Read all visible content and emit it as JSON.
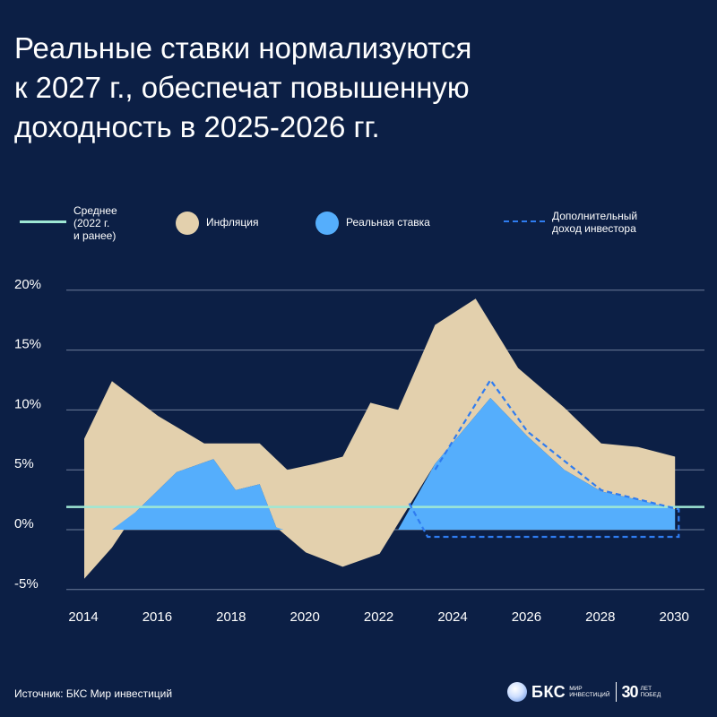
{
  "title_lines": [
    "Реальные ставки нормализуются",
    "к 2027 г., обеспечат повышенную",
    "доходность в 2025-2026 гг."
  ],
  "legend": {
    "average": "Среднее\n(2022 г.\nи ранее)",
    "inflation": "Инфляция",
    "real_rate": "Реальная ставка",
    "extra_income": "Дополнительный\nдоход инвестора"
  },
  "colors": {
    "background": "#0c1f45",
    "inflation": "#e3d0ad",
    "real_rate": "#55aefc",
    "average": "#9ee7d4",
    "extra_income": "#2f7cf0",
    "grid": "#6d7c99"
  },
  "chart_data": {
    "type": "area",
    "title": "",
    "xlabel": "",
    "ylabel": "",
    "y_unit": "%",
    "ylim": [
      -5,
      20
    ],
    "y_ticks": [
      20,
      15,
      10,
      5,
      0,
      -5
    ],
    "y_tick_labels": [
      "20%",
      "15%",
      "10%",
      "5%",
      "0%",
      "-5%"
    ],
    "xlim": [
      2014,
      2030.3
    ],
    "x_ticks": [
      2014,
      2016,
      2018,
      2020,
      2022,
      2024,
      2026,
      2028,
      2030
    ],
    "grid": true,
    "legend_position": "top",
    "series": [
      {
        "name": "Инфляция",
        "upper": [
          [
            2014,
            7.6
          ],
          [
            2014.75,
            12.4
          ],
          [
            2016,
            9.5
          ],
          [
            2017.25,
            7.2
          ],
          [
            2018,
            7.2
          ],
          [
            2018.75,
            7.2
          ],
          [
            2019.5,
            5.0
          ],
          [
            2020.25,
            5.5
          ],
          [
            2021.0,
            6.1
          ],
          [
            2021.75,
            10.6
          ],
          [
            2022.5,
            10.0
          ],
          [
            2023.5,
            17.1
          ],
          [
            2024.6,
            19.3
          ],
          [
            2025.75,
            13.5
          ],
          [
            2027.0,
            10.2
          ],
          [
            2028.0,
            7.2
          ],
          [
            2029.0,
            6.9
          ],
          [
            2030.0,
            6.1
          ]
        ],
        "lower": [
          [
            2030.0,
            1.7
          ],
          [
            2029.0,
            2.5
          ],
          [
            2028.0,
            3.2
          ],
          [
            2027.0,
            5.0
          ],
          [
            2026.0,
            7.8
          ],
          [
            2025.0,
            11.0
          ],
          [
            2023.5,
            5.5
          ],
          [
            2022.5,
            0.5
          ],
          [
            2022.0,
            -2.0
          ],
          [
            2021.0,
            -3.1
          ],
          [
            2020.0,
            -1.9
          ],
          [
            2019.2,
            0.2
          ],
          [
            2018.75,
            3.8
          ],
          [
            2018.1,
            3.3
          ],
          [
            2017.5,
            5.9
          ],
          [
            2016.5,
            4.8
          ],
          [
            2015.4,
            1.5
          ],
          [
            2014.75,
            -1.5
          ],
          [
            2014.0,
            -4.1
          ]
        ]
      },
      {
        "name": "Реальная ставка",
        "values": [
          [
            2014.75,
            0
          ],
          [
            2015.4,
            1.5
          ],
          [
            2016.5,
            4.8
          ],
          [
            2017.5,
            5.9
          ],
          [
            2018.1,
            3.3
          ],
          [
            2018.75,
            3.8
          ],
          [
            2019.2,
            0.2
          ],
          [
            2019.4,
            0
          ],
          [
            2022.5,
            0
          ],
          [
            2023.5,
            5.5
          ],
          [
            2025.0,
            11.0
          ],
          [
            2026.0,
            7.8
          ],
          [
            2027.0,
            5.0
          ],
          [
            2028.0,
            3.2
          ],
          [
            2029.0,
            2.5
          ],
          [
            2030.0,
            1.7
          ],
          [
            2030.0,
            0
          ]
        ]
      },
      {
        "name": "Среднее (2022 г. и ранее)",
        "value": 1.9
      },
      {
        "name": "Дополнительный доход инвестора",
        "values": [
          [
            2022.8,
            2.2
          ],
          [
            2023.3,
            -0.6
          ],
          [
            2030.1,
            -0.6
          ],
          [
            2030.1,
            1.7
          ],
          [
            2028.0,
            3.3
          ],
          [
            2026.0,
            8.2
          ],
          [
            2025.0,
            12.5
          ],
          [
            2023.5,
            5.0
          ]
        ]
      }
    ]
  },
  "footer": {
    "source": "Источник: БКС Мир инвестиций",
    "logo_brand": "БКС",
    "logo_sub": "МИР\nИНВЕСТИЦИЙ",
    "logo_30": "30",
    "logo_30_sub": "ЛЕТ\nПОБЕД"
  }
}
